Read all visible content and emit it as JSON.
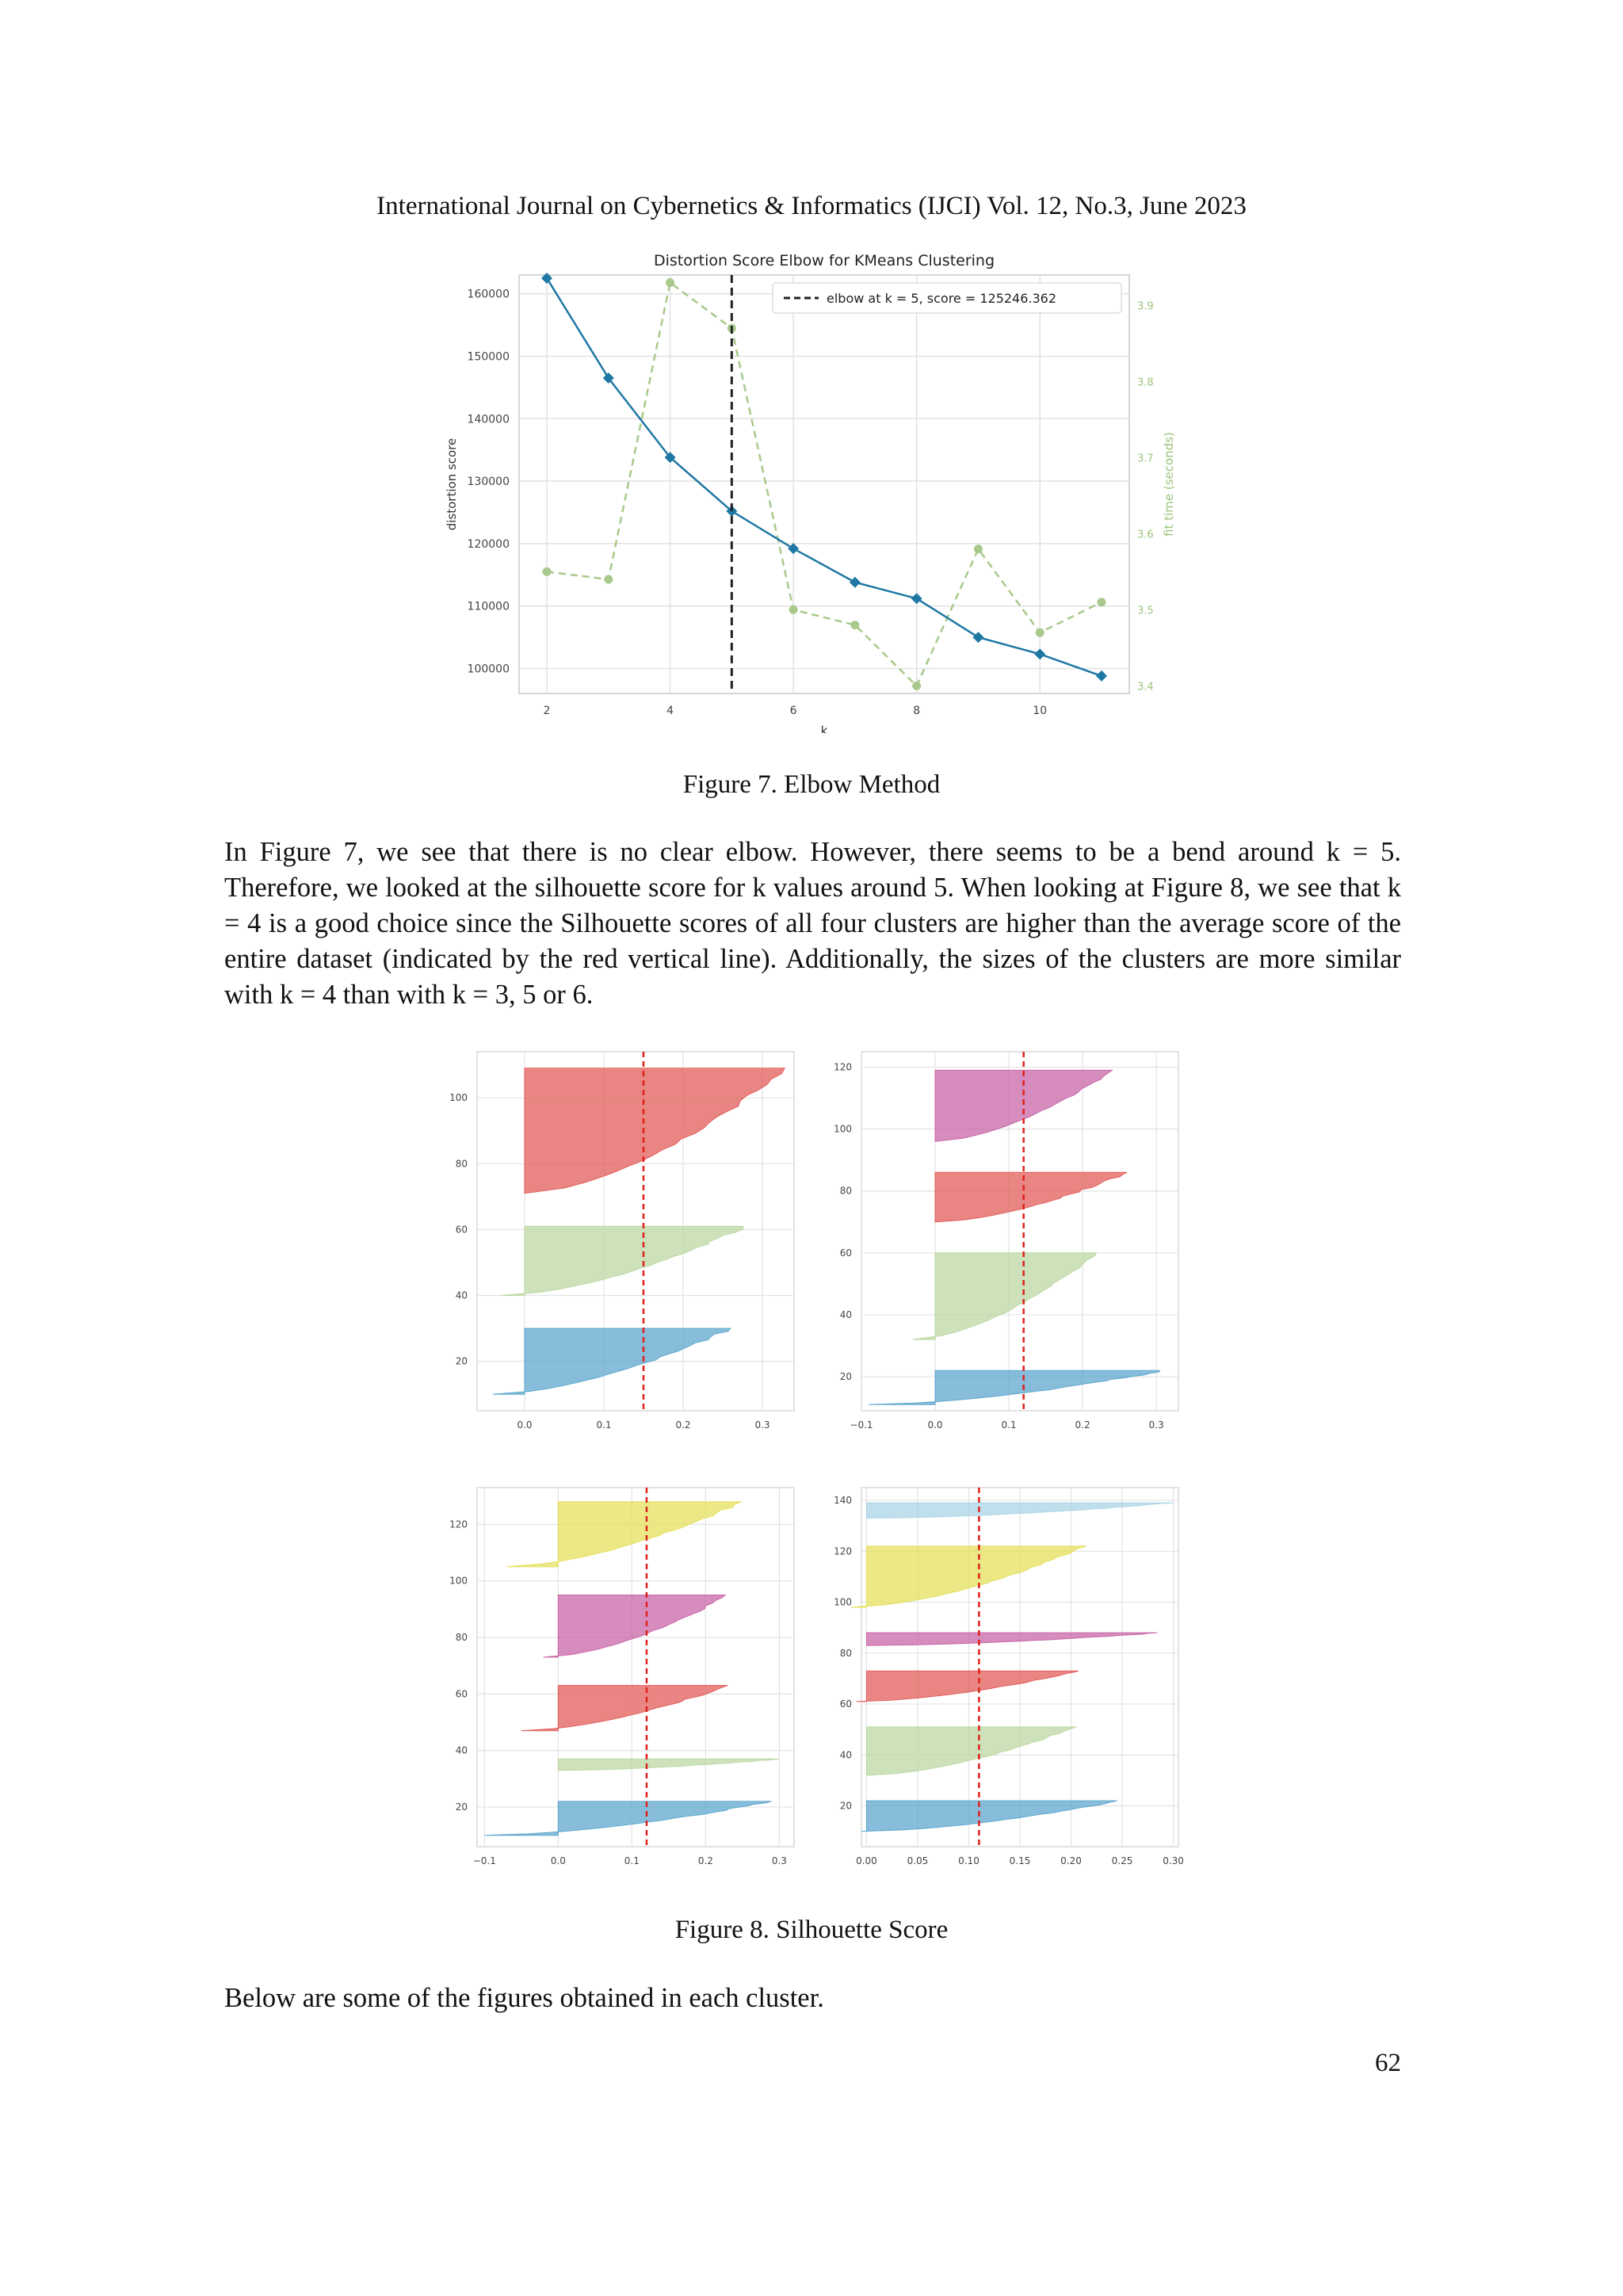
{
  "header": "International Journal on Cybernetics & Informatics (IJCI) Vol. 12, No.3, June 2023",
  "figure7": {
    "caption": "Figure 7. Elbow Method",
    "chart_data": {
      "type": "line",
      "title": "Distortion Score Elbow for KMeans Clustering",
      "xlabel": "k",
      "ylabel": "distortion score",
      "y2label": "fit time (seconds)",
      "x": [
        2,
        3,
        4,
        5,
        6,
        7,
        8,
        9,
        10,
        11
      ],
      "xticks": [
        2,
        4,
        6,
        8,
        10
      ],
      "ylim": [
        96000,
        163000
      ],
      "yticks": [
        100000,
        110000,
        120000,
        130000,
        140000,
        150000,
        160000
      ],
      "y2lim": [
        3.39,
        3.94
      ],
      "y2ticks": [
        3.4,
        3.5,
        3.6,
        3.7,
        3.8,
        3.9
      ],
      "series": [
        {
          "axis": "left",
          "color": "#1f78a4",
          "values": [
            162500,
            146500,
            133800,
            125200,
            119200,
            113800,
            111200,
            105000,
            102300,
            98800
          ]
        },
        {
          "axis": "right",
          "color": "#a8c98b",
          "values": [
            3.55,
            3.54,
            3.93,
            3.87,
            3.5,
            3.48,
            3.4,
            3.58,
            3.47,
            3.51
          ]
        }
      ],
      "elbow": {
        "k": 5,
        "label_prefix": "elbow at ",
        "label_math": "k = 5, score = 125246.362"
      },
      "grid": true,
      "legend": "top-right"
    }
  },
  "paragraph1": "In Figure 7, we see that there is no clear elbow. However, there seems to be a bend around k = 5. Therefore, we looked at the silhouette score for k values around 5. When looking at Figure 8, we see that k = 4 is a good choice since the Silhouette scores of all four clusters are higher than the average score of the entire dataset (indicated by the red vertical line). Additionally, the sizes of the clusters are more similar with k = 4 than with k = 3, 5 or 6.",
  "figure8": {
    "caption": "Figure 8. Silhouette Score",
    "chart_data": [
      {
        "type": "area",
        "k": 3,
        "avg": 0.15,
        "xlim": [
          -0.06,
          0.34
        ],
        "xticks": [
          "0.0",
          "0.1",
          "0.2",
          "0.3"
        ],
        "xtick_values": [
          0.0,
          0.1,
          0.2,
          0.3
        ],
        "ylim": [
          5,
          114
        ],
        "yticks": [
          20,
          40,
          60,
          80,
          100
        ],
        "clusters": [
          {
            "color": "#5fa7cd",
            "y0": 10,
            "y1": 30,
            "min": -0.04,
            "max": 0.26
          },
          {
            "color": "#bcd8a3",
            "y0": 40,
            "y1": 61,
            "min": -0.03,
            "max": 0.28
          },
          {
            "color": "#e15d5a",
            "y0": 71,
            "y1": 109,
            "min": 0.0,
            "max": 0.33
          }
        ]
      },
      {
        "type": "area",
        "k": 4,
        "avg": 0.12,
        "xlim": [
          -0.1,
          0.33
        ],
        "xticks": [
          "−0.1",
          "0.0",
          "0.1",
          "0.2",
          "0.3"
        ],
        "xtick_values": [
          -0.1,
          0.0,
          0.1,
          0.2,
          0.3
        ],
        "ylim": [
          9,
          125
        ],
        "yticks": [
          20,
          40,
          60,
          80,
          100,
          120
        ],
        "clusters": [
          {
            "color": "#5fa7cd",
            "y0": 11,
            "y1": 22,
            "min": -0.09,
            "max": 0.31
          },
          {
            "color": "#bcd8a3",
            "y0": 32,
            "y1": 60,
            "min": -0.03,
            "max": 0.22
          },
          {
            "color": "#e15d5a",
            "y0": 70,
            "y1": 86,
            "min": 0.0,
            "max": 0.26
          },
          {
            "color": "#c966a8",
            "y0": 96,
            "y1": 119,
            "min": 0.0,
            "max": 0.24
          }
        ]
      },
      {
        "type": "area",
        "k": 5,
        "avg": 0.12,
        "xlim": [
          -0.11,
          0.32
        ],
        "xticks": [
          "−0.1",
          "0.0",
          "0.1",
          "0.2",
          "0.3"
        ],
        "xtick_values": [
          -0.1,
          0.0,
          0.1,
          0.2,
          0.3
        ],
        "ylim": [
          6,
          133
        ],
        "yticks": [
          20,
          40,
          60,
          80,
          100,
          120
        ],
        "clusters": [
          {
            "color": "#5fa7cd",
            "y0": 10,
            "y1": 22,
            "min": -0.1,
            "max": 0.29
          },
          {
            "color": "#bcd8a3",
            "y0": 33,
            "y1": 37,
            "min": 0.0,
            "max": 0.3
          },
          {
            "color": "#e15d5a",
            "y0": 47,
            "y1": 63,
            "min": -0.05,
            "max": 0.23
          },
          {
            "color": "#c966a8",
            "y0": 73,
            "y1": 95,
            "min": -0.02,
            "max": 0.23
          },
          {
            "color": "#e5e05d",
            "y0": 105,
            "y1": 128,
            "min": -0.07,
            "max": 0.25
          }
        ]
      },
      {
        "type": "area",
        "k": 6,
        "avg": 0.11,
        "xlim": [
          -0.005,
          0.305
        ],
        "xticks": [
          "0.00",
          "0.05",
          "0.10",
          "0.15",
          "0.20",
          "0.25",
          "0.30"
        ],
        "xtick_values": [
          0,
          0.05,
          0.1,
          0.15,
          0.2,
          0.25,
          0.3
        ],
        "ylim": [
          4,
          145
        ],
        "yticks": [
          20,
          40,
          60,
          80,
          100,
          120,
          140
        ],
        "clusters": [
          {
            "color": "#5fa7cd",
            "y0": 10,
            "y1": 22,
            "min": -0.005,
            "max": 0.245
          },
          {
            "color": "#bcd8a3",
            "y0": 32,
            "y1": 51,
            "min": 0.0,
            "max": 0.205
          },
          {
            "color": "#e15d5a",
            "y0": 61,
            "y1": 73,
            "min": -0.01,
            "max": 0.21
          },
          {
            "color": "#c966a8",
            "y0": 83,
            "y1": 88,
            "min": 0.0,
            "max": 0.285
          },
          {
            "color": "#e5e05d",
            "y0": 98,
            "y1": 122,
            "min": -0.015,
            "max": 0.215
          },
          {
            "color": "#a9d4e5",
            "y0": 133,
            "y1": 139,
            "min": 0.0,
            "max": 0.3
          }
        ]
      }
    ]
  },
  "paragraph2": "Below are some of the figures obtained in each cluster.",
  "page_number": "62"
}
